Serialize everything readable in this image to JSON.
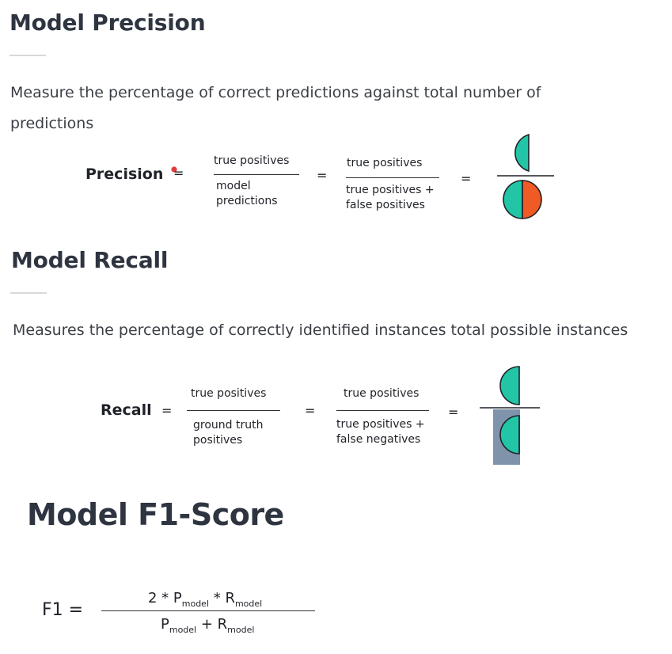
{
  "precision": {
    "title": "Model Precision",
    "description": "Measure the percentage of correct predictions against total number of predictions",
    "label": "Precision",
    "equals": "=",
    "frac1": {
      "num": "true positives",
      "den1": "model",
      "den2": "predictions"
    },
    "frac2": {
      "num": "true positives",
      "den1": "true positives +",
      "den2": "false positives"
    }
  },
  "recall": {
    "title": "Model Recall",
    "description": "Measures the percentage of correctly identified instances total possible instances",
    "label": "Recall",
    "equals": "=",
    "frac1": {
      "num": "true positives",
      "den1": "ground truth",
      "den2": "positives"
    },
    "frac2": {
      "num": "true positives",
      "den1": "true positives +",
      "den2": "false negatives"
    }
  },
  "f1": {
    "title": "Model F1-Score",
    "lhs": "F1 =",
    "num_prefix": "2 * P",
    "num_sub1": "model",
    "num_mid": " * R",
    "num_sub2": "model",
    "den_p": "P",
    "den_sub1": "model",
    "den_mid": " + R",
    "den_sub2": "model"
  },
  "colors": {
    "true_positive": "#22c6a6",
    "false_positive": "#f05a24",
    "ground_truth_box": "#7f93ab",
    "heading": "#2e3540",
    "cursor_mark": "#e03c3c"
  },
  "icons": [
    "half-circle-icon",
    "split-circle-icon",
    "cursor-dot-icon"
  ]
}
